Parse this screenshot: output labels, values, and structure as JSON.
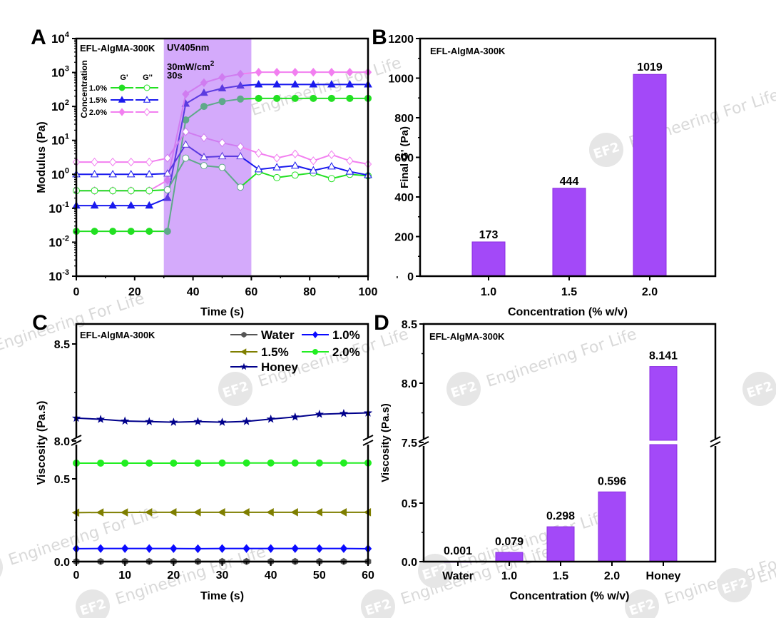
{
  "figure": {
    "watermark_text": "Engineering For Life",
    "watermark_logo": "EF2",
    "bar_color": "#a349f8",
    "uv_band_color": "#d4aafb"
  },
  "chart_data": [
    {
      "id": "A",
      "panel_label": "A",
      "type": "line",
      "title": "",
      "annotation": "EFL-AlgMA-300K",
      "uv_text": [
        "UV405nm",
        "30mW/cm",
        "2",
        "30s"
      ],
      "uv_window": [
        30,
        60
      ],
      "xlabel": "Time (s)",
      "ylabel": "Modulus (Pa)",
      "xlim": [
        0,
        100
      ],
      "ylim": [
        0.001,
        10000
      ],
      "yscale": "log",
      "xticks": [
        0,
        20,
        40,
        60,
        80,
        100
      ],
      "xtick_labels": [
        "0",
        "20",
        "40",
        "60",
        "80",
        "100"
      ],
      "yticks_exp": [
        -3,
        -2,
        -1,
        0,
        1,
        2,
        3,
        4
      ],
      "legend": {
        "title": "Concentration",
        "col_headers": [
          "G'",
          "G''"
        ],
        "rows": [
          "1.0%",
          "1.5%",
          "2.0%"
        ],
        "placement": "top-left"
      },
      "x": [
        0,
        6.25,
        12.5,
        18.75,
        25,
        31.25,
        37.5,
        43.75,
        50,
        56.25,
        62.5,
        68.75,
        75,
        81.25,
        87.5,
        93.75,
        100
      ],
      "series": [
        {
          "name": "1.0% G'",
          "color": "#22e022",
          "uv_color": "#5fa98a",
          "marker": "circle",
          "filled": true,
          "values": [
            0.021,
            0.021,
            0.021,
            0.021,
            0.021,
            0.021,
            40,
            100,
            140,
            165,
            173,
            173,
            173,
            173,
            173,
            173,
            173
          ]
        },
        {
          "name": "1.5% G'",
          "color": "#1a1aee",
          "uv_color": "#5b3be0",
          "marker": "triangle",
          "filled": true,
          "values": [
            0.12,
            0.12,
            0.12,
            0.12,
            0.12,
            0.2,
            120,
            250,
            340,
            410,
            444,
            444,
            444,
            444,
            444,
            444,
            444
          ]
        },
        {
          "name": "2.0% G'",
          "color": "#f27ff0",
          "uv_color": "#d07cf0",
          "marker": "diamond",
          "filled": true,
          "values": [
            0.33,
            0.33,
            0.33,
            0.33,
            0.33,
            0.67,
            230,
            500,
            720,
            900,
            1019,
            1019,
            1019,
            1019,
            1019,
            1019,
            1019
          ]
        },
        {
          "name": "1.0% G''",
          "color": "#22e022",
          "uv_color": "#5fa98a",
          "marker": "circle",
          "filled": false,
          "values": [
            0.33,
            0.33,
            0.33,
            0.33,
            0.33,
            0.35,
            3,
            1.8,
            1.6,
            0.42,
            1.2,
            0.8,
            0.95,
            1.1,
            0.75,
            1.0,
            0.9
          ]
        },
        {
          "name": "1.5% G''",
          "color": "#1a1aee",
          "uv_color": "#5b3be0",
          "marker": "triangle",
          "filled": false,
          "values": [
            1.0,
            1.0,
            1.0,
            1.0,
            1.0,
            1.05,
            7.5,
            3.2,
            3.4,
            3.4,
            1.4,
            1.6,
            1.8,
            1.3,
            1.7,
            1.2,
            0.95
          ]
        },
        {
          "name": "2.0% G''",
          "color": "#f27ff0",
          "uv_color": "#d07cf0",
          "marker": "diamond",
          "filled": false,
          "values": [
            2.3,
            2.3,
            2.3,
            2.3,
            2.3,
            3,
            18,
            12,
            8.5,
            6.5,
            4.2,
            3,
            4,
            2.5,
            3.8,
            2.5,
            2
          ]
        }
      ]
    },
    {
      "id": "B",
      "panel_label": "B",
      "type": "bar",
      "annotation": "EFL-AlgMA-300K",
      "xlabel": "Concentration (% w/v)",
      "ylabel": "Final G' (Pa)",
      "ylim": [
        0,
        1200
      ],
      "yticks": [
        0,
        200,
        400,
        600,
        800,
        1000,
        1200
      ],
      "categories": [
        "1.0",
        "1.5",
        "2.0"
      ],
      "values": [
        173,
        444,
        1019
      ],
      "data_labels": [
        "173",
        "444",
        "1019"
      ]
    },
    {
      "id": "C",
      "panel_label": "C",
      "type": "line",
      "annotation": "EFL-AlgMA-300K",
      "xlabel": "Time (s)",
      "ylabel": "Viscosity (Pa.s)",
      "xlim": [
        0,
        60
      ],
      "xticks": [
        0,
        10,
        20,
        30,
        40,
        50,
        60
      ],
      "xtick_labels": [
        "0",
        "10",
        "20",
        "30",
        "40",
        "50",
        "60"
      ],
      "y_break": {
        "lower": [
          0,
          0.8
        ],
        "upper": [
          8.0,
          8.5
        ]
      },
      "ytick_labels": {
        "lower": [
          "0.0",
          "0.5"
        ],
        "upper": [
          "8.0",
          "8.5"
        ]
      },
      "legend_placement": "top-right",
      "x": [
        0,
        5,
        10,
        15,
        20,
        25,
        30,
        35,
        40,
        45,
        50,
        55,
        60
      ],
      "series": [
        {
          "name": "Water",
          "color": "#555555",
          "marker": "hexagon",
          "values": [
            0.001,
            0.001,
            0.001,
            0.001,
            0.001,
            0.001,
            0.001,
            0.001,
            0.001,
            0.001,
            0.001,
            0.001,
            0.001
          ]
        },
        {
          "name": "1.0%",
          "color": "#0a0aff",
          "marker": "diamond",
          "values": [
            0.078,
            0.079,
            0.079,
            0.079,
            0.079,
            0.078,
            0.079,
            0.079,
            0.079,
            0.079,
            0.079,
            0.079,
            0.078
          ]
        },
        {
          "name": "1.5%",
          "color": "#7f7f00",
          "marker": "left-triangle",
          "values": [
            0.296,
            0.297,
            0.297,
            0.298,
            0.298,
            0.298,
            0.298,
            0.298,
            0.298,
            0.298,
            0.298,
            0.298,
            0.298
          ]
        },
        {
          "name": "2.0%",
          "color": "#22ee22",
          "marker": "circle",
          "values": [
            0.595,
            0.595,
            0.595,
            0.595,
            0.595,
            0.595,
            0.596,
            0.596,
            0.596,
            0.596,
            0.596,
            0.596,
            0.596
          ]
        },
        {
          "name": "Honey",
          "color": "#00008b",
          "marker": "star",
          "values": [
            8.118,
            8.112,
            8.103,
            8.1,
            8.097,
            8.1,
            8.097,
            8.101,
            8.113,
            8.124,
            8.138,
            8.142,
            8.145
          ]
        }
      ]
    },
    {
      "id": "D",
      "panel_label": "D",
      "type": "bar",
      "annotation": "EFL-AlgMA-300K",
      "xlabel": "Concentration (% w/v)",
      "ylabel": "Viscosity (Pa.s)",
      "y_break": {
        "lower": [
          0,
          0.75
        ],
        "upper": [
          7.5,
          8.5
        ]
      },
      "ytick_labels": {
        "lower": [
          "0.0",
          "0.5"
        ],
        "upper": [
          "7.5",
          "8.0",
          "8.5"
        ]
      },
      "categories": [
        "Water",
        "1.0",
        "1.5",
        "2.0",
        "Honey"
      ],
      "values": [
        0.001,
        0.079,
        0.298,
        0.596,
        8.141
      ],
      "data_labels": [
        "0.001",
        "0.079",
        "0.298",
        "0.596",
        "8.141"
      ]
    }
  ]
}
